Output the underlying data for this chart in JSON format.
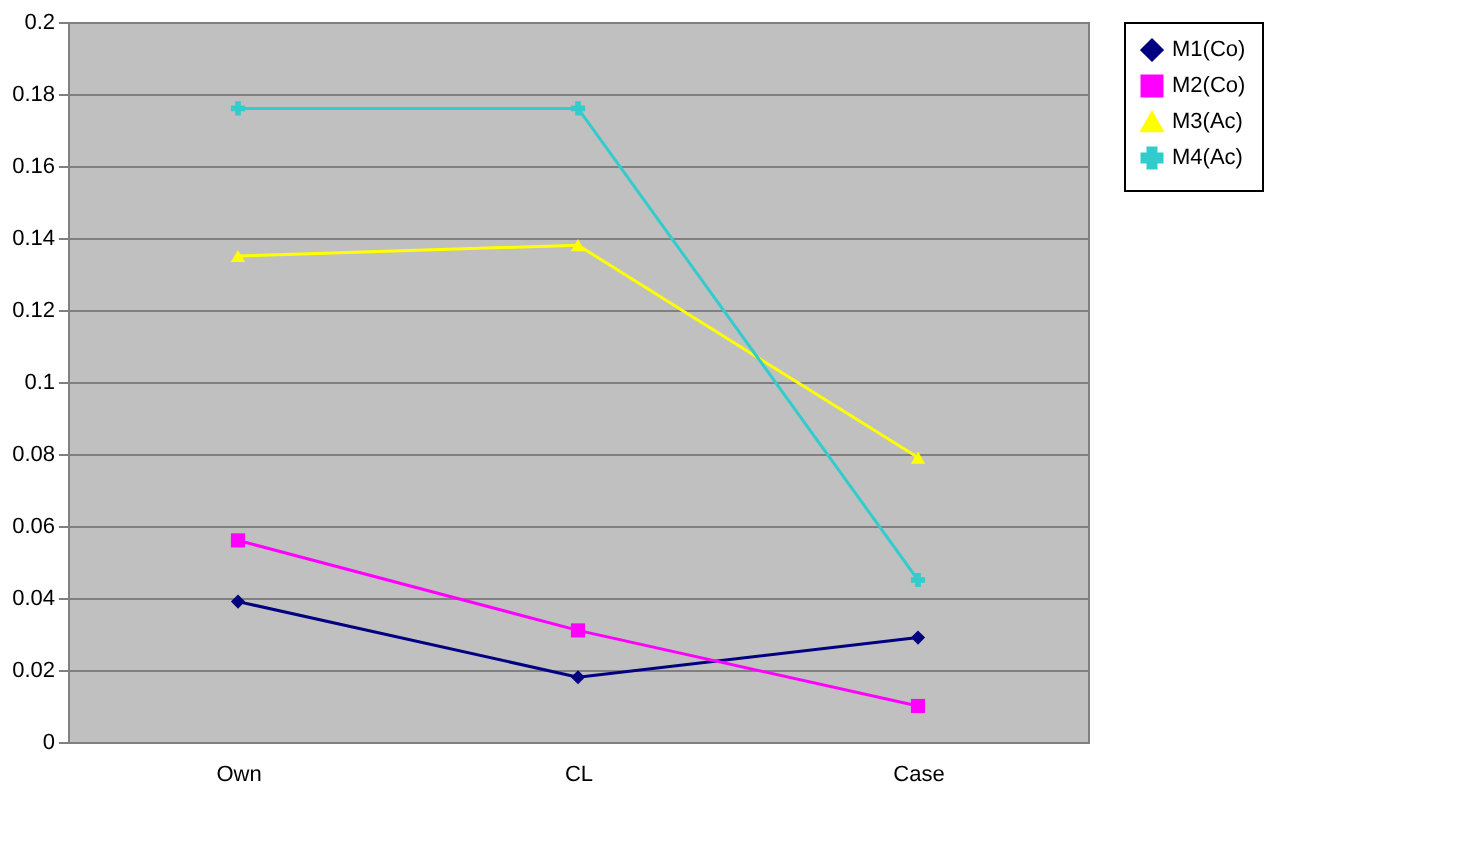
{
  "chart_data": {
    "type": "line",
    "categories": [
      "Own",
      "CL",
      "Case"
    ],
    "series": [
      {
        "name": "M1(Co)",
        "color": "#000080",
        "marker": "diamond",
        "values": [
          0.039,
          0.018,
          0.029
        ]
      },
      {
        "name": "M2(Co)",
        "color": "#ff00ff",
        "marker": "square",
        "values": [
          0.056,
          0.031,
          0.01
        ]
      },
      {
        "name": "M3(Ac)",
        "color": "#ffff00",
        "marker": "triangle",
        "values": [
          0.135,
          0.138,
          0.079
        ]
      },
      {
        "name": "M4(Ac)",
        "color": "#33cccc",
        "marker": "cross",
        "values": [
          0.176,
          0.176,
          0.045
        ]
      }
    ],
    "ylim": [
      0,
      0.2
    ],
    "yticks": [
      0,
      0.02,
      0.04,
      0.06,
      0.08,
      0.1,
      0.12,
      0.14,
      0.16,
      0.18,
      0.2
    ],
    "grid": "y",
    "legend": "right",
    "line_style": "solid"
  }
}
